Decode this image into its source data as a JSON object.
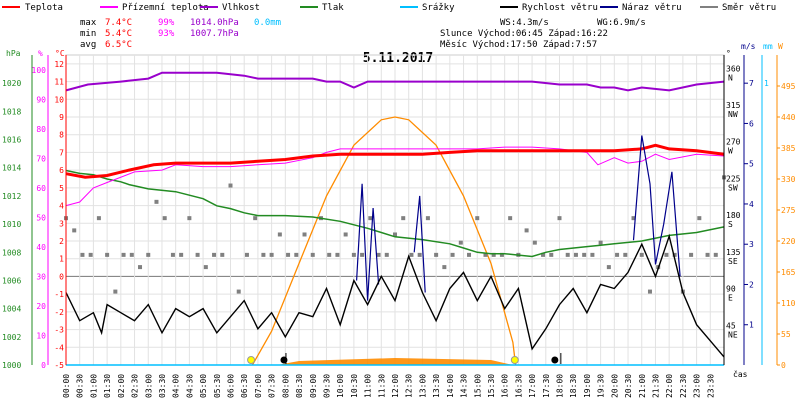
{
  "chart_data": {
    "type": "line",
    "title": "5.11.2017",
    "x_axis_label": "čas",
    "x_ticks": [
      "00:00",
      "00:30",
      "01:00",
      "01:30",
      "02:00",
      "02:30",
      "03:00",
      "03:30",
      "04:00",
      "04:30",
      "05:00",
      "05:30",
      "06:00",
      "06:30",
      "07:00",
      "07:30",
      "08:00",
      "08:30",
      "09:00",
      "09:30",
      "10:00",
      "10:30",
      "11:00",
      "11:30",
      "12:00",
      "12:30",
      "13:00",
      "13:30",
      "14:00",
      "14:30",
      "15:00",
      "15:30",
      "16:00",
      "16:30",
      "17:00",
      "17:30",
      "18:00",
      "18:30",
      "19:00",
      "19:30",
      "20:00",
      "20:30",
      "21:00",
      "21:30",
      "22:00",
      "22:30",
      "23:00",
      "23:30"
    ],
    "x_range_hours": [
      0,
      24
    ],
    "legend": [
      {
        "name": "Teplota",
        "color": "#ff0000"
      },
      {
        "name": "Přízemní teplota",
        "color": "#ff00ff"
      },
      {
        "name": "Vlhkost",
        "color": "#9900cc"
      },
      {
        "name": "Tlak",
        "color": "#228b22"
      },
      {
        "name": "Srážky",
        "color": "#00bfff"
      },
      {
        "name": "Rychlost větru",
        "color": "#000000"
      },
      {
        "name": "Náraz větru",
        "color": "#00008b"
      },
      {
        "name": "Směr větru",
        "color": "#808080"
      }
    ],
    "stats": {
      "max_label": "max",
      "min_label": "min",
      "avg_label": "avg",
      "max_temp": "7.4°C",
      "max_hum": "99%",
      "max_press": "1014.0hPa",
      "max_rain": "0.0mm",
      "min_temp": "5.4°C",
      "min_hum": "93%",
      "min_press": "1007.7hPa",
      "avg_temp": "6.5°C",
      "ws": "WS:4.3m/s",
      "wg": "WG:6.9m/s",
      "sun": "Slunce Východ:06:45  Západ:16:22",
      "moon": "Měsíc  Východ:17:50  Západ:7:57"
    },
    "axes": {
      "pressure": {
        "unit": "hPa",
        "color": "#228b22",
        "range": [
          1000,
          1022
        ],
        "ticks": [
          "1020",
          "1018",
          "1016",
          "1014",
          "1012",
          "1010",
          "1008",
          "1006",
          "1004",
          "1002",
          "1000"
        ]
      },
      "humidity": {
        "unit": "%",
        "color": "#ff00ff",
        "range": [
          0,
          105
        ],
        "ticks": [
          "100",
          "90",
          "80",
          "70",
          "60",
          "50",
          "40",
          "30",
          "20",
          "10",
          "0"
        ]
      },
      "temperature": {
        "unit": "°C",
        "color": "#ff0000",
        "range": [
          -5,
          12.5
        ],
        "ticks": [
          "12",
          "11",
          "10",
          "9",
          "8",
          "7",
          "6",
          "5",
          "4",
          "3",
          "2",
          "1",
          "0",
          "-1",
          "-2",
          "-3",
          "-4",
          "-5"
        ]
      },
      "direction": {
        "unit": "°",
        "range": [
          0,
          380
        ],
        "ticks": [
          "360",
          "315",
          "270",
          "225",
          "180",
          "135",
          "90",
          "45"
        ],
        "compass": [
          "N",
          "NW",
          "W",
          "SW",
          "S",
          "SE",
          "E",
          "NE"
        ]
      },
      "wind": {
        "unit": "m/s",
        "color": "#00008b",
        "range": [
          0,
          7.7
        ],
        "ticks": [
          "7",
          "6",
          "5",
          "4",
          "3",
          "2",
          "1"
        ]
      },
      "rain": {
        "unit": "mm",
        "color": "#00bfff",
        "range": [
          0,
          1.1
        ],
        "ticks": [
          "1"
        ]
      },
      "solar": {
        "unit": "W",
        "color": "#ff8c00",
        "range": [
          0,
          550
        ],
        "ticks": [
          "495",
          "440",
          "385",
          "330",
          "275",
          "220",
          "165",
          "110",
          "55",
          "0"
        ]
      }
    },
    "series_data": {
      "temperature": [
        [
          0,
          5.8
        ],
        [
          0.7,
          5.6
        ],
        [
          1.5,
          5.7
        ],
        [
          2.3,
          6.0
        ],
        [
          3.2,
          6.3
        ],
        [
          4,
          6.4
        ],
        [
          5,
          6.4
        ],
        [
          6,
          6.4
        ],
        [
          7,
          6.5
        ],
        [
          8,
          6.6
        ],
        [
          9,
          6.8
        ],
        [
          10,
          6.9
        ],
        [
          11,
          6.9
        ],
        [
          12,
          6.9
        ],
        [
          13,
          6.9
        ],
        [
          14,
          7.0
        ],
        [
          15,
          7.1
        ],
        [
          16,
          7.1
        ],
        [
          17,
          7.1
        ],
        [
          18,
          7.1
        ],
        [
          19,
          7.1
        ],
        [
          20,
          7.1
        ],
        [
          21,
          7.2
        ],
        [
          21.5,
          7.4
        ],
        [
          22,
          7.2
        ],
        [
          23,
          7.1
        ],
        [
          24,
          6.9
        ]
      ],
      "ground_temperature": [
        [
          0,
          4.0
        ],
        [
          0.5,
          4.2
        ],
        [
          1,
          5.0
        ],
        [
          1.5,
          5.3
        ],
        [
          2.5,
          5.9
        ],
        [
          3.5,
          6.0
        ],
        [
          4,
          6.3
        ],
        [
          5,
          6.2
        ],
        [
          6,
          6.2
        ],
        [
          7,
          6.3
        ],
        [
          8,
          6.4
        ],
        [
          9,
          6.7
        ],
        [
          9.5,
          7.0
        ],
        [
          10,
          7.2
        ],
        [
          11,
          7.2
        ],
        [
          12,
          7.2
        ],
        [
          13,
          7.2
        ],
        [
          14,
          7.2
        ],
        [
          15,
          7.2
        ],
        [
          16,
          7.3
        ],
        [
          17,
          7.3
        ],
        [
          18,
          7.2
        ],
        [
          19,
          7.0
        ],
        [
          19.4,
          6.3
        ],
        [
          20,
          6.7
        ],
        [
          20.5,
          6.4
        ],
        [
          21,
          6.5
        ],
        [
          21.5,
          6.9
        ],
        [
          22,
          6.6
        ],
        [
          23,
          6.9
        ],
        [
          24,
          6.8
        ]
      ],
      "humidity": [
        [
          0,
          93
        ],
        [
          0.8,
          95
        ],
        [
          2,
          96
        ],
        [
          3,
          97
        ],
        [
          3.5,
          99
        ],
        [
          5.5,
          99
        ],
        [
          6.5,
          98
        ],
        [
          7,
          97
        ],
        [
          8,
          97
        ],
        [
          9,
          97
        ],
        [
          9.5,
          96
        ],
        [
          10,
          96
        ],
        [
          10.5,
          94
        ],
        [
          11,
          96
        ],
        [
          12,
          96
        ],
        [
          13,
          96
        ],
        [
          14,
          96
        ],
        [
          15,
          96
        ],
        [
          16,
          96
        ],
        [
          17,
          96
        ],
        [
          18,
          95
        ],
        [
          19,
          95
        ],
        [
          19.5,
          94
        ],
        [
          20,
          94
        ],
        [
          20.5,
          93
        ],
        [
          21,
          94
        ],
        [
          22,
          93
        ],
        [
          23,
          95
        ],
        [
          24,
          96
        ]
      ],
      "pressure": [
        [
          0,
          1013.8
        ],
        [
          0.5,
          1013.6
        ],
        [
          1,
          1013.5
        ],
        [
          1.5,
          1013.2
        ],
        [
          2,
          1013.0
        ],
        [
          2.3,
          1012.8
        ],
        [
          3,
          1012.5
        ],
        [
          4,
          1012.3
        ],
        [
          5,
          1011.8
        ],
        [
          5.5,
          1011.3
        ],
        [
          6,
          1011.1
        ],
        [
          6.5,
          1010.8
        ],
        [
          7,
          1010.6
        ],
        [
          8,
          1010.6
        ],
        [
          9,
          1010.5
        ],
        [
          10,
          1010.2
        ],
        [
          11,
          1009.7
        ],
        [
          11.5,
          1009.4
        ],
        [
          12,
          1009.1
        ],
        [
          13,
          1008.9
        ],
        [
          14,
          1008.6
        ],
        [
          14.5,
          1008.3
        ],
        [
          15,
          1008.0
        ],
        [
          15.5,
          1007.9
        ],
        [
          16,
          1007.9
        ],
        [
          16.5,
          1007.8
        ],
        [
          17,
          1007.7
        ],
        [
          17.5,
          1008.0
        ],
        [
          18,
          1008.2
        ],
        [
          19,
          1008.4
        ],
        [
          19.5,
          1008.5
        ],
        [
          20,
          1008.6
        ],
        [
          21,
          1008.8
        ],
        [
          22,
          1009.2
        ],
        [
          23,
          1009.4
        ],
        [
          24,
          1009.8
        ]
      ],
      "wind_speed": [
        [
          0,
          1.8
        ],
        [
          0.5,
          1.1
        ],
        [
          1,
          1.3
        ],
        [
          1.3,
          0.8
        ],
        [
          1.5,
          1.5
        ],
        [
          2,
          1.3
        ],
        [
          2.5,
          1.1
        ],
        [
          3,
          1.5
        ],
        [
          3.5,
          0.8
        ],
        [
          4,
          1.4
        ],
        [
          4.5,
          1.2
        ],
        [
          5,
          1.4
        ],
        [
          5.5,
          0.8
        ],
        [
          6,
          1.2
        ],
        [
          6.5,
          1.6
        ],
        [
          7,
          0.9
        ],
        [
          7.5,
          1.3
        ],
        [
          8,
          0.7
        ],
        [
          8.5,
          1.3
        ],
        [
          9,
          1.2
        ],
        [
          9.5,
          1.9
        ],
        [
          10,
          1.0
        ],
        [
          10.5,
          2.1
        ],
        [
          11,
          1.5
        ],
        [
          11.5,
          2.2
        ],
        [
          12,
          1.6
        ],
        [
          12.5,
          2.7
        ],
        [
          13,
          1.8
        ],
        [
          13.5,
          1.1
        ],
        [
          14,
          1.9
        ],
        [
          14.5,
          2.3
        ],
        [
          15,
          1.6
        ],
        [
          15.5,
          2.2
        ],
        [
          16,
          1.4
        ],
        [
          16.5,
          1.9
        ],
        [
          17,
          0.4
        ],
        [
          17.5,
          0.9
        ],
        [
          18,
          1.5
        ],
        [
          18.5,
          1.9
        ],
        [
          19,
          1.3
        ],
        [
          19.5,
          2.0
        ],
        [
          20,
          1.9
        ],
        [
          20.5,
          2.3
        ],
        [
          21,
          3.0
        ],
        [
          21.5,
          2.2
        ],
        [
          22,
          3.2
        ],
        [
          22.5,
          1.8
        ],
        [
          23,
          1.0
        ],
        [
          23.5,
          0.6
        ],
        [
          24,
          0.2
        ]
      ],
      "wind_gust": [
        [
          10.6,
          2.1
        ],
        [
          10.8,
          4.5
        ],
        [
          11,
          1.6
        ],
        [
          11.2,
          3.9
        ],
        [
          11.4,
          2.0
        ],
        [
          12.7,
          2.8
        ],
        [
          12.9,
          4.2
        ],
        [
          13.1,
          1.8
        ],
        [
          20.7,
          3.1
        ],
        [
          21,
          5.7
        ],
        [
          21.3,
          4.5
        ],
        [
          21.5,
          2.5
        ],
        [
          21.8,
          3.5
        ],
        [
          22.1,
          4.8
        ],
        [
          22.4,
          2.2
        ]
      ],
      "wind_direction": [
        [
          0,
          180
        ],
        [
          0.3,
          165
        ],
        [
          0.6,
          135
        ],
        [
          0.9,
          135
        ],
        [
          1.2,
          180
        ],
        [
          1.5,
          135
        ],
        [
          1.8,
          90
        ],
        [
          2.1,
          135
        ],
        [
          2.4,
          135
        ],
        [
          2.7,
          120
        ],
        [
          3,
          135
        ],
        [
          3.3,
          200
        ],
        [
          3.6,
          180
        ],
        [
          3.9,
          135
        ],
        [
          4.2,
          135
        ],
        [
          4.5,
          180
        ],
        [
          4.8,
          135
        ],
        [
          5.1,
          120
        ],
        [
          5.4,
          135
        ],
        [
          5.7,
          135
        ],
        [
          6,
          220
        ],
        [
          6.3,
          90
        ],
        [
          6.6,
          135
        ],
        [
          6.9,
          180
        ],
        [
          7.2,
          135
        ],
        [
          7.5,
          135
        ],
        [
          7.8,
          160
        ],
        [
          8.1,
          135
        ],
        [
          8.4,
          135
        ],
        [
          8.7,
          160
        ],
        [
          9,
          135
        ],
        [
          9.3,
          180
        ],
        [
          9.6,
          135
        ],
        [
          9.9,
          135
        ],
        [
          10.2,
          160
        ],
        [
          10.5,
          135
        ],
        [
          10.8,
          135
        ],
        [
          11.1,
          180
        ],
        [
          11.4,
          135
        ],
        [
          11.7,
          135
        ],
        [
          12,
          160
        ],
        [
          12.3,
          180
        ],
        [
          12.6,
          135
        ],
        [
          12.9,
          135
        ],
        [
          13.2,
          180
        ],
        [
          13.5,
          135
        ],
        [
          13.8,
          120
        ],
        [
          14.1,
          135
        ],
        [
          14.4,
          150
        ],
        [
          14.7,
          135
        ],
        [
          15,
          180
        ],
        [
          15.3,
          135
        ],
        [
          15.6,
          135
        ],
        [
          15.9,
          135
        ],
        [
          16.2,
          180
        ],
        [
          16.5,
          135
        ],
        [
          16.8,
          165
        ],
        [
          17.1,
          150
        ],
        [
          17.4,
          135
        ],
        [
          17.7,
          135
        ],
        [
          18,
          180
        ],
        [
          18.3,
          135
        ],
        [
          18.6,
          135
        ],
        [
          18.9,
          135
        ],
        [
          19.2,
          135
        ],
        [
          19.5,
          150
        ],
        [
          19.8,
          120
        ],
        [
          20.1,
          135
        ],
        [
          20.4,
          135
        ],
        [
          20.7,
          180
        ],
        [
          21,
          135
        ],
        [
          21.3,
          90
        ],
        [
          21.6,
          120
        ],
        [
          21.9,
          135
        ],
        [
          22.2,
          135
        ],
        [
          22.5,
          90
        ],
        [
          22.8,
          135
        ],
        [
          23.1,
          180
        ],
        [
          23.4,
          135
        ],
        [
          23.7,
          135
        ],
        [
          24,
          230
        ]
      ],
      "solar_radiation": [
        [
          6.8,
          0
        ],
        [
          7.5,
          60
        ],
        [
          8.5,
          180
        ],
        [
          9.5,
          300
        ],
        [
          10.5,
          390
        ],
        [
          11.5,
          435
        ],
        [
          12,
          440
        ],
        [
          12.5,
          435
        ],
        [
          13.5,
          390
        ],
        [
          14.5,
          300
        ],
        [
          15.5,
          180
        ],
        [
          16.3,
          40
        ],
        [
          16.4,
          0
        ]
      ],
      "rain": [
        [
          0,
          0
        ],
        [
          24,
          0
        ]
      ]
    },
    "markers": {
      "sunrise": 6.75,
      "sunset": 16.37,
      "moonrise": 17.83,
      "moonset": 7.95
    }
  }
}
